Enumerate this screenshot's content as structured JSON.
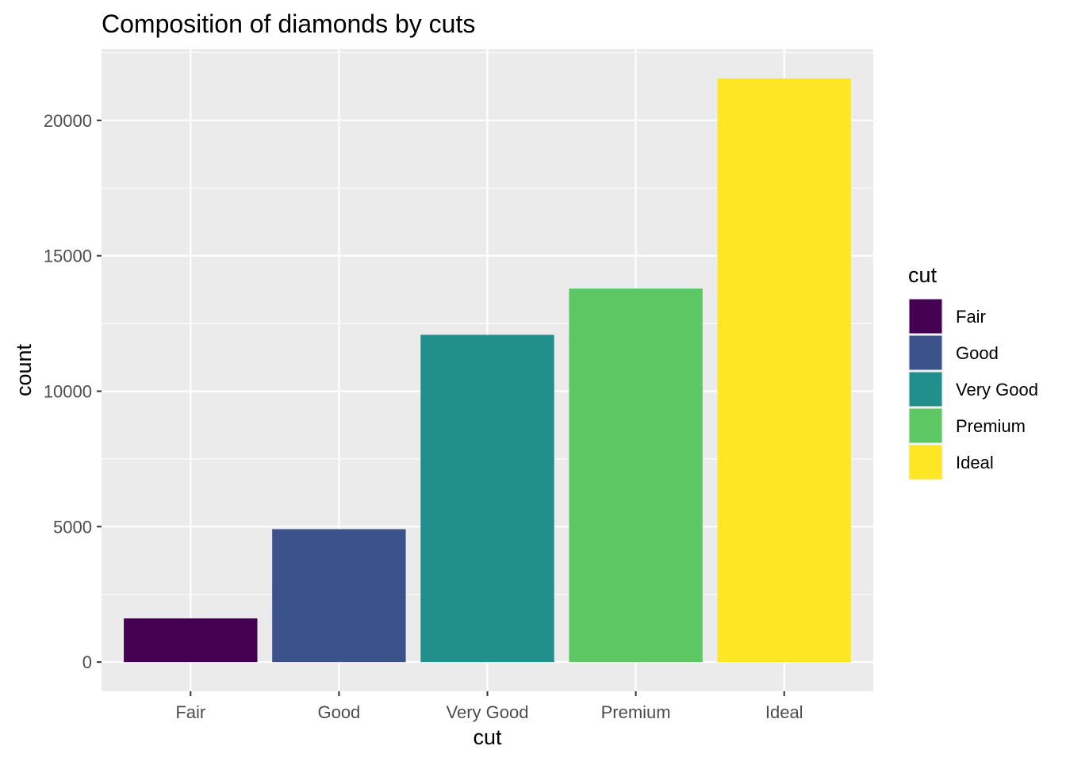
{
  "chart_data": {
    "type": "bar",
    "title": "Composition of diamonds by cuts",
    "xlabel": "cut",
    "ylabel": "count",
    "categories": [
      "Fair",
      "Good",
      "Very Good",
      "Premium",
      "Ideal"
    ],
    "values": [
      1610,
      4906,
      12082,
      13791,
      21551
    ],
    "colors": [
      "#440154",
      "#3b528b",
      "#21908c",
      "#5dc863",
      "#fde725"
    ],
    "ylim": [
      -1078,
      22629
    ],
    "yticks": [
      0,
      5000,
      10000,
      15000,
      20000
    ],
    "ytick_labels": [
      "0",
      "5000",
      "10000",
      "15000",
      "20000"
    ],
    "grid": true,
    "panel_background": "#ebebeb",
    "grid_color": "#ffffff",
    "legend": {
      "title": "cut",
      "position": "right",
      "items": [
        "Fair",
        "Good",
        "Very Good",
        "Premium",
        "Ideal"
      ]
    }
  }
}
